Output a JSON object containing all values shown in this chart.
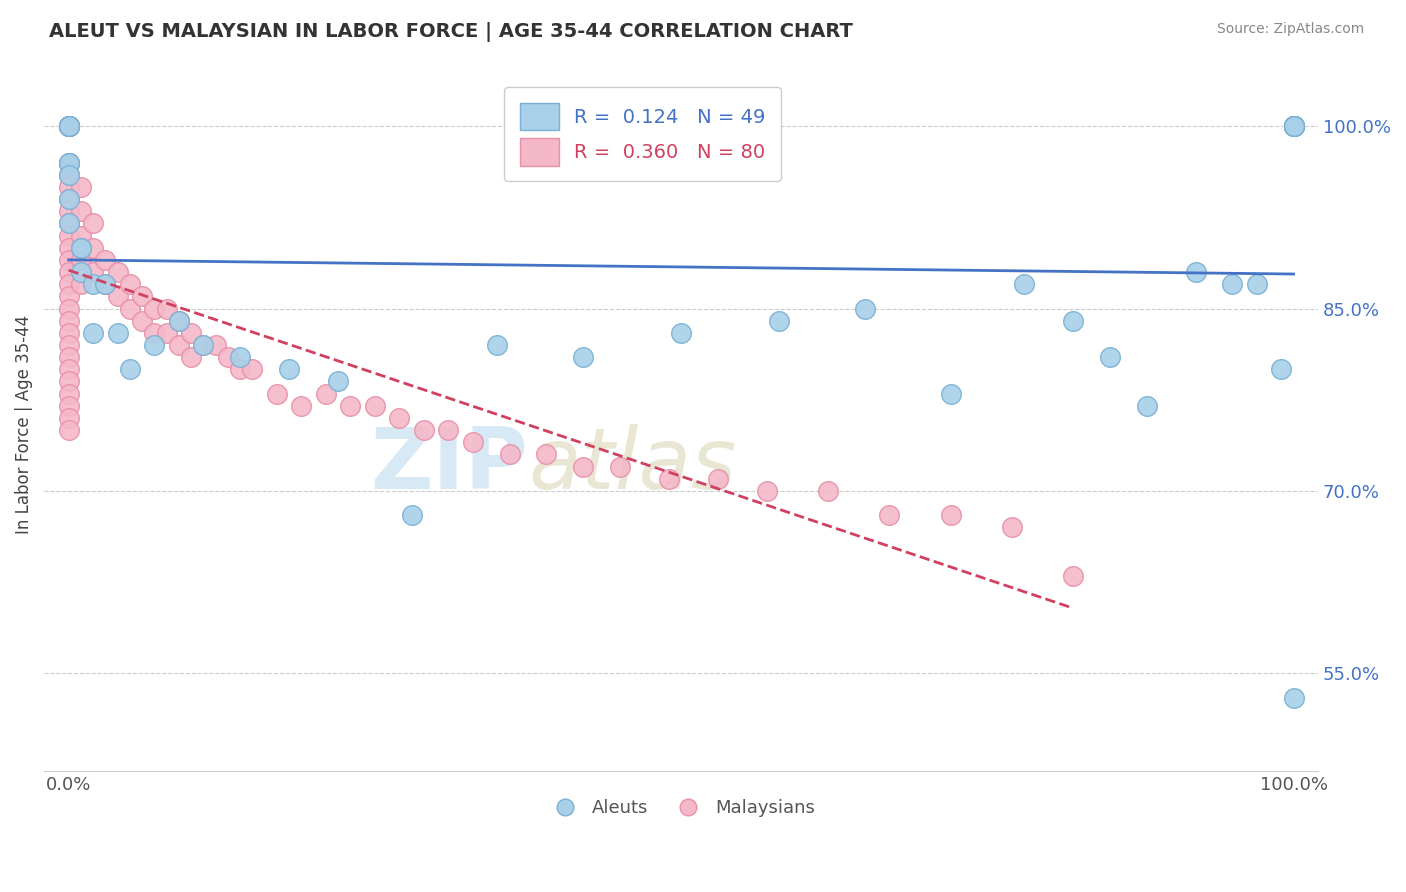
{
  "title": "ALEUT VS MALAYSIAN IN LABOR FORCE | AGE 35-44 CORRELATION CHART",
  "source": "Source: ZipAtlas.com",
  "ylabel": "In Labor Force | Age 35-44",
  "xlim": [
    -0.02,
    1.02
  ],
  "ylim": [
    0.47,
    1.04
  ],
  "aleut_R": 0.124,
  "aleut_N": 49,
  "malay_R": 0.36,
  "malay_N": 80,
  "aleut_color": "#a8d0e8",
  "malay_color": "#f4b8c8",
  "aleut_edge": "#7ab0d4",
  "malay_edge": "#e890a8",
  "trend_aleut_color": "#4472c4",
  "trend_malay_color": "#d04060",
  "trend_aleut_dash": "solid",
  "trend_malay_dash": "solid",
  "background_color": "#ffffff",
  "grid_color": "#cccccc",
  "aleut_x": [
    0.0,
    0.0,
    0.0,
    0.0,
    0.0,
    0.0,
    0.0,
    0.0,
    0.0,
    0.0,
    0.0,
    0.01,
    0.01,
    0.01,
    0.02,
    0.02,
    0.03,
    0.04,
    0.05,
    0.07,
    0.09,
    0.11,
    0.14,
    0.18,
    0.22,
    0.28,
    0.35,
    0.42,
    0.5,
    0.58,
    0.65,
    0.72,
    0.78,
    0.82,
    0.85,
    0.88,
    0.92,
    0.95,
    0.97,
    0.99,
    1.0,
    1.0,
    1.0,
    1.0,
    1.0,
    1.0,
    1.0,
    1.0,
    1.0
  ],
  "aleut_y": [
    1.0,
    1.0,
    1.0,
    1.0,
    1.0,
    1.0,
    0.97,
    0.97,
    0.96,
    0.94,
    0.92,
    0.9,
    0.88,
    0.9,
    0.87,
    0.83,
    0.87,
    0.83,
    0.8,
    0.82,
    0.84,
    0.82,
    0.81,
    0.8,
    0.79,
    0.68,
    0.82,
    0.81,
    0.83,
    0.84,
    0.85,
    0.78,
    0.87,
    0.84,
    0.81,
    0.77,
    0.88,
    0.87,
    0.87,
    0.8,
    1.0,
    1.0,
    1.0,
    1.0,
    1.0,
    1.0,
    1.0,
    1.0,
    0.53
  ],
  "malay_x": [
    0.0,
    0.0,
    0.0,
    0.0,
    0.0,
    0.0,
    0.0,
    0.0,
    0.0,
    0.0,
    0.0,
    0.0,
    0.0,
    0.0,
    0.0,
    0.0,
    0.0,
    0.0,
    0.0,
    0.0,
    0.0,
    0.0,
    0.0,
    0.0,
    0.0,
    0.0,
    0.0,
    0.0,
    0.0,
    0.0,
    0.01,
    0.01,
    0.01,
    0.01,
    0.01,
    0.02,
    0.02,
    0.02,
    0.03,
    0.03,
    0.04,
    0.04,
    0.05,
    0.05,
    0.06,
    0.06,
    0.07,
    0.07,
    0.08,
    0.08,
    0.09,
    0.09,
    0.1,
    0.1,
    0.11,
    0.12,
    0.13,
    0.14,
    0.15,
    0.17,
    0.19,
    0.21,
    0.23,
    0.25,
    0.27,
    0.29,
    0.31,
    0.33,
    0.36,
    0.39,
    0.42,
    0.45,
    0.49,
    0.53,
    0.57,
    0.62,
    0.67,
    0.72,
    0.77,
    0.82
  ],
  "malay_y": [
    1.0,
    1.0,
    1.0,
    1.0,
    1.0,
    0.97,
    0.97,
    0.96,
    0.96,
    0.95,
    0.94,
    0.93,
    0.92,
    0.91,
    0.9,
    0.89,
    0.88,
    0.87,
    0.86,
    0.85,
    0.84,
    0.83,
    0.82,
    0.81,
    0.8,
    0.79,
    0.78,
    0.77,
    0.76,
    0.75,
    0.95,
    0.93,
    0.91,
    0.89,
    0.87,
    0.92,
    0.9,
    0.88,
    0.89,
    0.87,
    0.88,
    0.86,
    0.87,
    0.85,
    0.86,
    0.84,
    0.85,
    0.83,
    0.85,
    0.83,
    0.84,
    0.82,
    0.83,
    0.81,
    0.82,
    0.82,
    0.81,
    0.8,
    0.8,
    0.78,
    0.77,
    0.78,
    0.77,
    0.77,
    0.76,
    0.75,
    0.75,
    0.74,
    0.73,
    0.73,
    0.72,
    0.72,
    0.71,
    0.71,
    0.7,
    0.7,
    0.68,
    0.68,
    0.67,
    0.63
  ],
  "yticks": [
    0.55,
    0.7,
    0.85,
    1.0
  ],
  "ytick_labels": [
    "55.0%",
    "70.0%",
    "85.0%",
    "100.0%"
  ],
  "xticks": [
    0.0,
    0.25,
    0.5,
    0.75,
    1.0
  ],
  "xtick_labels": [
    "0.0%",
    "",
    "",
    "",
    "100.0%"
  ]
}
